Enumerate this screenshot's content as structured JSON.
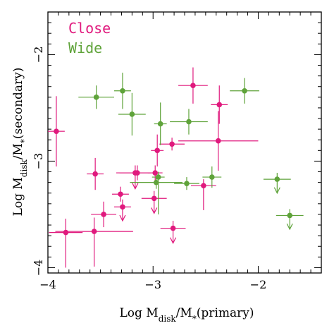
{
  "chart_data": {
    "type": "scatter",
    "xlabel": "Log M_disk/M_*(primary)",
    "ylabel": "Log M_disk/M_*(secondary)",
    "xlim": [
      -4.0,
      -1.4
    ],
    "ylim": [
      -4.05,
      -1.6
    ],
    "x_ticks": [
      -4,
      -3,
      -2
    ],
    "y_ticks": [
      -4,
      -3,
      -2
    ],
    "x_tick_labels": [
      "−4",
      "−3",
      "−2"
    ],
    "y_tick_labels": [
      "−4",
      "−3",
      "−2"
    ],
    "grid": false,
    "legend_position": "top-left",
    "series": [
      {
        "name": "Close",
        "color": "#e0197d",
        "points": [
          {
            "x": -3.92,
            "y": -2.72,
            "xerr": 0.08,
            "yerr_up": 0.33,
            "yerr_down": 0.33,
            "upper_limit": false
          },
          {
            "x": -3.55,
            "y": -3.12,
            "xerr": 0.08,
            "yerr_up": 0.15,
            "yerr_down": 0.15,
            "upper_limit": false
          },
          {
            "x": -3.83,
            "y": -3.67,
            "xerr": 0.16,
            "yerr_up": 0.13,
            "yerr_down": 0.33,
            "upper_limit": false
          },
          {
            "x": -3.56,
            "y": -3.66,
            "xerr": 0.37,
            "yerr_up": 0.13,
            "yerr_down": 0.33,
            "upper_limit": false
          },
          {
            "x": -3.47,
            "y": -3.5,
            "xerr": 0.12,
            "yerr_up": 0.12,
            "yerr_down": 0.12,
            "upper_limit": false
          },
          {
            "x": -3.31,
            "y": -3.31,
            "xerr": 0.08,
            "yerr_up": 0.07,
            "yerr_down": 0.07,
            "upper_limit": false
          },
          {
            "x": -3.29,
            "y": -3.43,
            "xerr": 0.08,
            "yerr_up": 0.07,
            "yerr_down": 0.13,
            "upper_limit": true
          },
          {
            "x": -3.17,
            "y": -3.11,
            "xerr": 0.15,
            "yerr_up": 0.07,
            "yerr_down": 0.15,
            "upper_limit": true
          },
          {
            "x": -3.15,
            "y": -3.11,
            "xerr": 0.2,
            "yerr_up": 0.07,
            "yerr_down": 0.07,
            "upper_limit": false
          },
          {
            "x": -2.98,
            "y": -3.11,
            "xerr": 0.07,
            "yerr_up": 0.07,
            "yerr_down": 0.07,
            "upper_limit": false
          },
          {
            "x": -2.99,
            "y": -3.35,
            "xerr": 0.12,
            "yerr_up": 0.07,
            "yerr_down": 0.14,
            "upper_limit": true
          },
          {
            "x": -2.96,
            "y": -2.9,
            "xerr": 0.06,
            "yerr_up": 0.15,
            "yerr_down": 0.15,
            "upper_limit": false
          },
          {
            "x": -2.82,
            "y": -2.84,
            "xerr": 0.12,
            "yerr_up": 0.06,
            "yerr_down": 0.06,
            "upper_limit": false
          },
          {
            "x": -2.81,
            "y": -3.63,
            "xerr": 0.12,
            "yerr_up": 0.07,
            "yerr_down": 0.14,
            "upper_limit": true
          },
          {
            "x": -2.62,
            "y": -2.29,
            "xerr": 0.14,
            "yerr_up": 0.17,
            "yerr_down": 0.17,
            "upper_limit": false
          },
          {
            "x": -2.52,
            "y": -3.23,
            "xerr": 0.12,
            "yerr_up": 0.06,
            "yerr_down": 0.23,
            "upper_limit": false
          },
          {
            "x": -2.37,
            "y": -2.47,
            "xerr": 0.08,
            "yerr_up": 0.18,
            "yerr_down": 0.18,
            "upper_limit": false
          },
          {
            "x": -2.38,
            "y": -2.81,
            "xerr": 0.38,
            "yerr_up": 0.28,
            "yerr_down": 0.28,
            "upper_limit": false
          }
        ]
      },
      {
        "name": "Wide",
        "color": "#5fa33a",
        "points": [
          {
            "x": -3.54,
            "y": -2.4,
            "xerr": 0.17,
            "yerr_up": 0.11,
            "yerr_down": 0.11,
            "upper_limit": false
          },
          {
            "x": -3.29,
            "y": -2.34,
            "xerr": 0.08,
            "yerr_up": 0.17,
            "yerr_down": 0.17,
            "upper_limit": false
          },
          {
            "x": -3.2,
            "y": -2.56,
            "xerr": 0.13,
            "yerr_up": 0.2,
            "yerr_down": 0.2,
            "upper_limit": false
          },
          {
            "x": -2.93,
            "y": -2.65,
            "xerr": 0.06,
            "yerr_up": 0.2,
            "yerr_down": 0.2,
            "upper_limit": false
          },
          {
            "x": -2.66,
            "y": -2.63,
            "xerr": 0.18,
            "yerr_up": 0.12,
            "yerr_down": 0.12,
            "upper_limit": false
          },
          {
            "x": -2.95,
            "y": -3.15,
            "xerr": 0.06,
            "yerr_up": 0.05,
            "yerr_down": 0.35,
            "upper_limit": false
          },
          {
            "x": -2.97,
            "y": -3.2,
            "xerr": 0.25,
            "yerr_up": 0.06,
            "yerr_down": 0.06,
            "upper_limit": false
          },
          {
            "x": -2.68,
            "y": -3.21,
            "xerr": 0.12,
            "yerr_up": 0.06,
            "yerr_down": 0.06,
            "upper_limit": false
          },
          {
            "x": -2.44,
            "y": -3.15,
            "xerr": 0.09,
            "yerr_up": 0.1,
            "yerr_down": 0.1,
            "upper_limit": false
          },
          {
            "x": -2.13,
            "y": -2.34,
            "xerr": 0.14,
            "yerr_up": 0.12,
            "yerr_down": 0.12,
            "upper_limit": false
          },
          {
            "x": -1.82,
            "y": -3.17,
            "xerr": 0.13,
            "yerr_up": 0.06,
            "yerr_down": 0.13,
            "upper_limit": true
          },
          {
            "x": -1.7,
            "y": -3.51,
            "xerr": 0.13,
            "yerr_up": 0.06,
            "yerr_down": 0.13,
            "upper_limit": true
          }
        ]
      }
    ]
  }
}
